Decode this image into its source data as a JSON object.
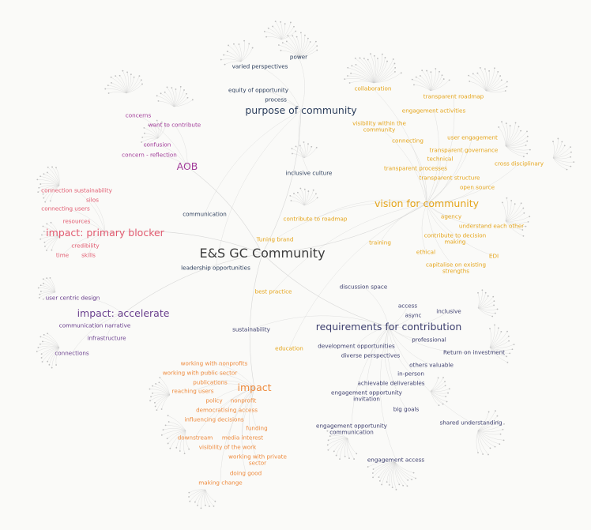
{
  "palette": {
    "center": "#3c3c3c",
    "purpose": "#2c3e5c",
    "vision": "#e5a51b",
    "requirements": "#3d3f6e",
    "impact": "#ee8a3c",
    "accelerate": "#6a3f8e",
    "blocker": "#e15a6f",
    "aob": "#a23c9a",
    "edge": "#c9c9c9"
  },
  "center": {
    "label": "E&S GC Community"
  },
  "clusters": [
    {
      "id": "purpose",
      "label": "purpose of community",
      "color": "#2c3e5c",
      "items": [
        "power",
        "varied perspectives",
        "equity of opportunity",
        "process",
        "inclusive culture",
        "communication",
        "leadership opportunities"
      ]
    },
    {
      "id": "vision",
      "label": "vision for community",
      "color": "#e5a51b",
      "items": [
        "collaboration",
        "transparent roadmap",
        "engagement activities",
        "visibility within the\ncommunity",
        "user engagement",
        "connecting",
        "transparent governance",
        "technical",
        "transparent processes",
        "cross disciplinary",
        "transparent structure",
        "open source",
        "contribute to roadmap",
        "agency",
        "understand each other",
        "contribute to decision\nmaking",
        "Tuning brand",
        "training",
        "ethical",
        "EDI",
        "capitalise on existing\nstrengths",
        "best practice",
        "education"
      ]
    },
    {
      "id": "requirements",
      "label": "requirements for contribution",
      "color": "#3d3f6e",
      "items": [
        "discussion space",
        "access",
        "async",
        "inclusive",
        "sustainability",
        "professional",
        "development opportunities",
        "Return on investment",
        "diverse perspectives",
        "others valuable",
        "in-person",
        "achievable deliverables",
        "engagement opportunity\ninvitation",
        "big goals",
        "shared understanding",
        "engagement opportunity\ncommunication",
        "engagement access"
      ]
    },
    {
      "id": "impact",
      "label": "impact",
      "color": "#ee8a3c",
      "items": [
        "working with nonprofits",
        "working with public sector",
        "publications",
        "reaching users",
        "policy",
        "nonprofit",
        "democratising access",
        "influencing decisions",
        "funding",
        "downstream",
        "media interest",
        "visibility of the work",
        "working with private\nsector",
        "doing good",
        "making change"
      ]
    },
    {
      "id": "accelerate",
      "label": "impact: accelerate",
      "color": "#6a3f8e",
      "items": [
        "user centric design",
        "communication narrative",
        "infrastructure",
        "connections"
      ]
    },
    {
      "id": "blocker",
      "label": "impact: primary blocker",
      "color": "#e15a6f",
      "items": [
        "connection sustainability",
        "silos",
        "connecting users",
        "resources",
        "credibility",
        "time",
        "skills"
      ]
    },
    {
      "id": "aob",
      "label": "AOB",
      "color": "#a23c9a",
      "items": [
        "concerns",
        "want to contribute",
        "confusion",
        "concern - reflection"
      ]
    }
  ]
}
